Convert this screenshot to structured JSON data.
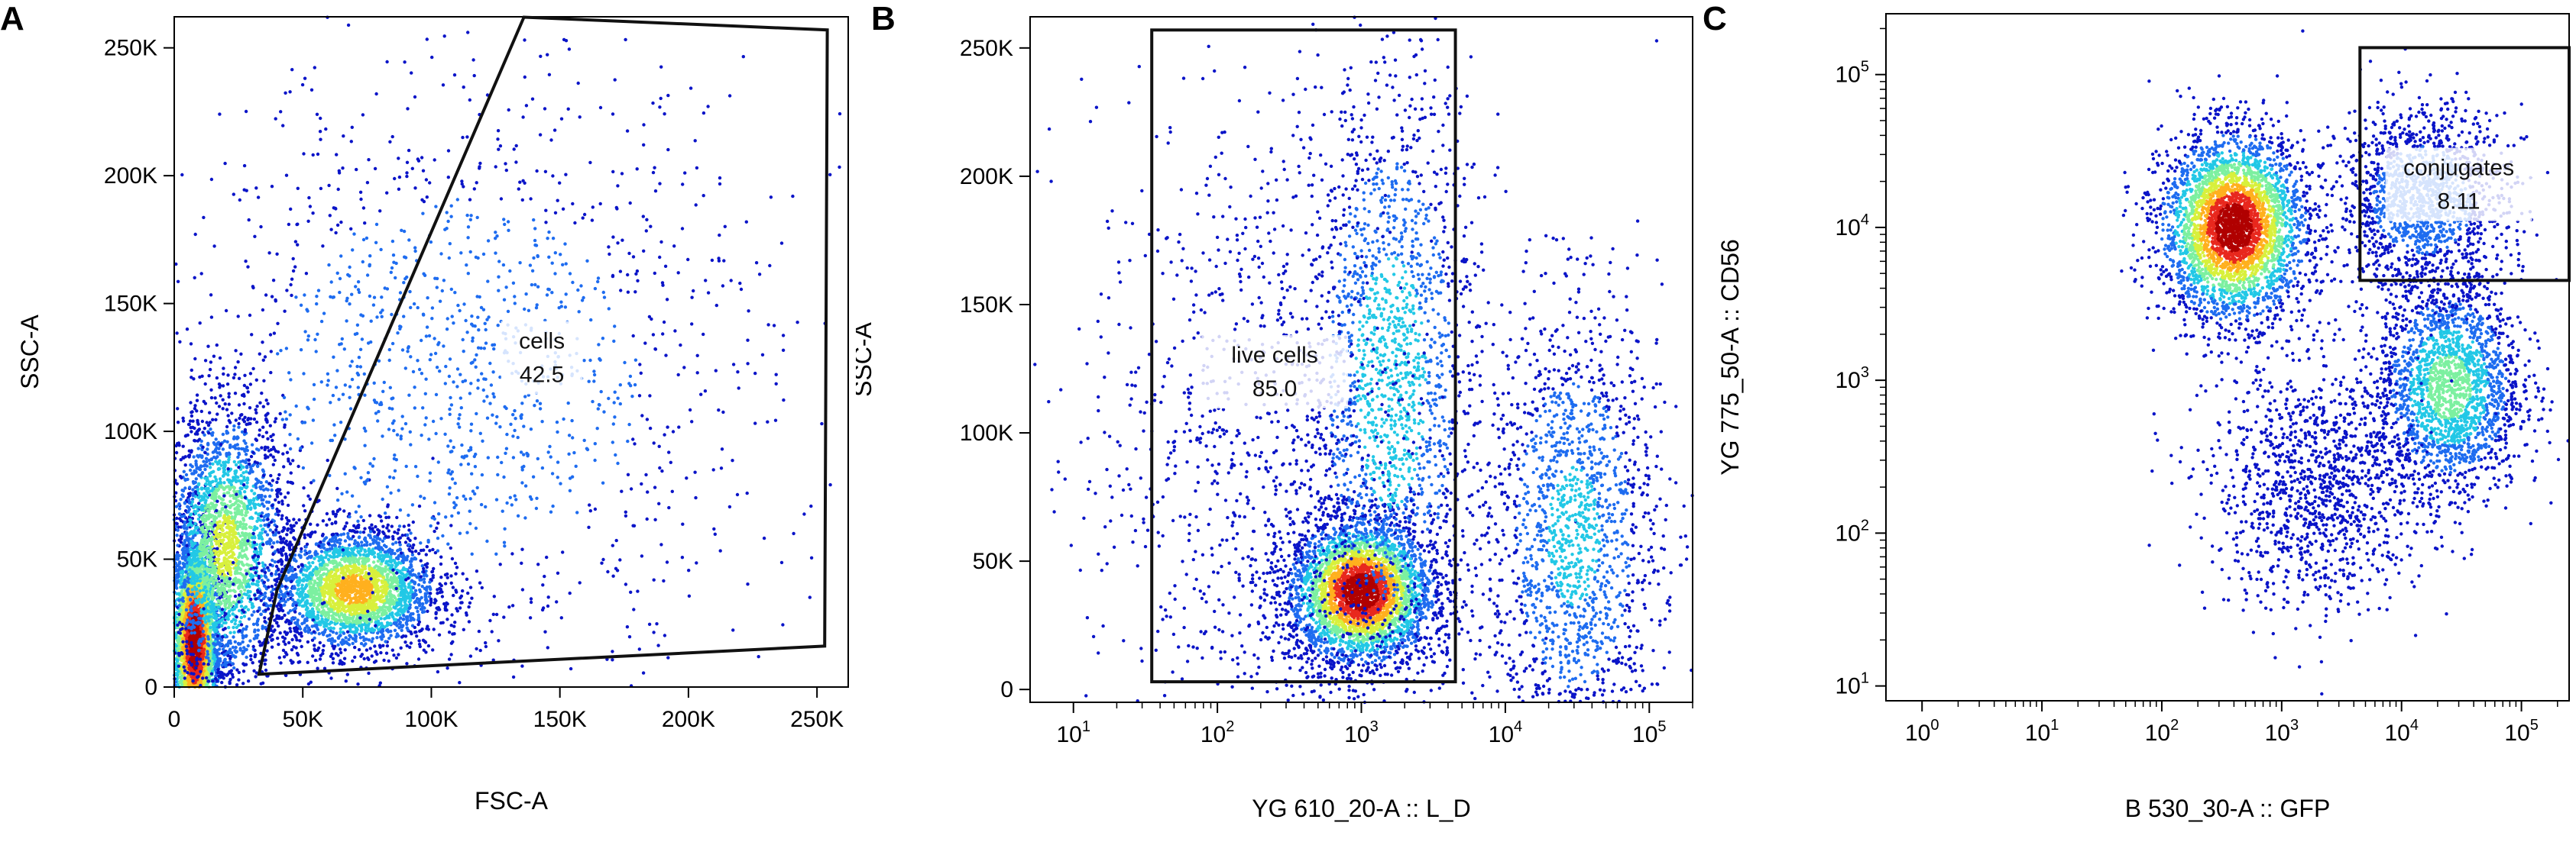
{
  "figure": {
    "panel_letters": [
      "A",
      "B",
      "C"
    ]
  },
  "colors": {
    "background": "#ffffff",
    "gate_line": "#111111",
    "density_scale": [
      "#0a14c8",
      "#1e6cf0",
      "#22c8e6",
      "#7cf0a0",
      "#d8f03c",
      "#ffb01e",
      "#e8281e",
      "#b00000"
    ]
  },
  "chart_data": [
    {
      "panel": "A",
      "type": "scatter",
      "xlabel": "FSC-A",
      "ylabel": "SSC-A",
      "xscale": "linear",
      "yscale": "linear",
      "xlim": [
        0,
        262144
      ],
      "ylim": [
        0,
        262144
      ],
      "xticks": [
        {
          "v": 0,
          "label": "0"
        },
        {
          "v": 50000,
          "label": "50K"
        },
        {
          "v": 100000,
          "label": "100K"
        },
        {
          "v": 150000,
          "label": "150K"
        },
        {
          "v": 200000,
          "label": "200K"
        },
        {
          "v": 250000,
          "label": "250K"
        }
      ],
      "yticks": [
        {
          "v": 0,
          "label": "0"
        },
        {
          "v": 50000,
          "label": "50K"
        },
        {
          "v": 100000,
          "label": "100K"
        },
        {
          "v": 150000,
          "label": "150K"
        },
        {
          "v": 200000,
          "label": "200K"
        },
        {
          "v": 250000,
          "label": "250K"
        }
      ],
      "gate": {
        "name": "cells",
        "value": "42.5",
        "shape": "polygon",
        "vertices": [
          [
            33000,
            5000
          ],
          [
            40000,
            38000
          ],
          [
            136000,
            262000
          ],
          [
            254000,
            257000
          ],
          [
            253000,
            16000
          ]
        ],
        "label_at": [
          143000,
          130000
        ]
      },
      "populations": [
        {
          "cx": 8000,
          "cy": 18000,
          "sx": 5000,
          "sy": 22000,
          "peak": 1.0
        },
        {
          "cx": 20000,
          "cy": 55000,
          "sx": 12000,
          "sy": 28000,
          "peak": 0.55
        },
        {
          "cx": 70000,
          "cy": 38000,
          "sx": 16000,
          "sy": 12000,
          "peak": 0.7
        },
        {
          "cx": 110000,
          "cy": 120000,
          "sx": 60000,
          "sy": 60000,
          "peak": 0.25
        }
      ]
    },
    {
      "panel": "B",
      "type": "scatter",
      "xlabel": "YG 610_20-A :: L_D",
      "ylabel": "SSC-A",
      "xscale": "log",
      "yscale": "linear",
      "xlim": [
        5,
        200000
      ],
      "ylim": [
        -5000,
        262144
      ],
      "xticks": [
        {
          "v": 10,
          "base": "10",
          "exp": "1"
        },
        {
          "v": 100,
          "base": "10",
          "exp": "2"
        },
        {
          "v": 1000,
          "base": "10",
          "exp": "3"
        },
        {
          "v": 10000,
          "base": "10",
          "exp": "4"
        },
        {
          "v": 100000,
          "base": "10",
          "exp": "5"
        }
      ],
      "yticks": [
        {
          "v": 0,
          "label": "0"
        },
        {
          "v": 50000,
          "label": "50K"
        },
        {
          "v": 100000,
          "label": "100K"
        },
        {
          "v": 150000,
          "label": "150K"
        },
        {
          "v": 200000,
          "label": "200K"
        },
        {
          "v": 250000,
          "label": "250K"
        }
      ],
      "gate": {
        "name": "live cells",
        "value": "85.0",
        "shape": "rectangle",
        "x": [
          35,
          4500
        ],
        "y": [
          3000,
          257000
        ],
        "label_at": [
          250,
          125000
        ]
      },
      "populations": [
        {
          "cx": 1000,
          "cy": 38000,
          "sx": 0.25,
          "sy": 14000,
          "peak": 1.0
        },
        {
          "cx": 1600,
          "cy": 120000,
          "sx": 0.3,
          "sy": 60000,
          "peak": 0.35
        },
        {
          "cx": 30000,
          "cy": 60000,
          "sx": 0.3,
          "sy": 45000,
          "peak": 0.3
        },
        {
          "cx": 200,
          "cy": 90000,
          "sx": 0.6,
          "sy": 70000,
          "peak": 0.08
        }
      ]
    },
    {
      "panel": "C",
      "type": "scatter",
      "xlabel": "B 530_30-A :: GFP",
      "ylabel": "YG 775_50-A :: CD56",
      "xscale": "log",
      "yscale": "log",
      "xlim": [
        0.5,
        250000
      ],
      "ylim": [
        8,
        250000
      ],
      "xticks": [
        {
          "v": 1,
          "base": "10",
          "exp": "0"
        },
        {
          "v": 10,
          "base": "10",
          "exp": "1"
        },
        {
          "v": 100,
          "base": "10",
          "exp": "2"
        },
        {
          "v": 1000,
          "base": "10",
          "exp": "3"
        },
        {
          "v": 10000,
          "base": "10",
          "exp": "4"
        },
        {
          "v": 100000,
          "base": "10",
          "exp": "5"
        }
      ],
      "yticks": [
        {
          "v": 10,
          "base": "10",
          "exp": "1"
        },
        {
          "v": 100,
          "base": "10",
          "exp": "2"
        },
        {
          "v": 1000,
          "base": "10",
          "exp": "3"
        },
        {
          "v": 10000,
          "base": "10",
          "exp": "4"
        },
        {
          "v": 100000,
          "base": "10",
          "exp": "5"
        }
      ],
      "gate": {
        "name": "conjugates",
        "value": "8.11",
        "shape": "rectangle",
        "x": [
          4500,
          250000
        ],
        "y": [
          4500,
          150000
        ],
        "label_at": [
          30000,
          20000
        ]
      },
      "populations": [
        {
          "cx": 400,
          "cy": 10000,
          "sx": 0.3,
          "sy": 0.3,
          "peak": 1.0
        },
        {
          "cx": 25000,
          "cy": 900,
          "sx": 0.3,
          "sy": 0.35,
          "peak": 0.45
        },
        {
          "cx": 15000,
          "cy": 15000,
          "sx": 0.35,
          "sy": 0.3,
          "peak": 0.25
        },
        {
          "cx": 2000,
          "cy": 200,
          "sx": 0.45,
          "sy": 0.4,
          "peak": 0.12
        }
      ]
    }
  ]
}
